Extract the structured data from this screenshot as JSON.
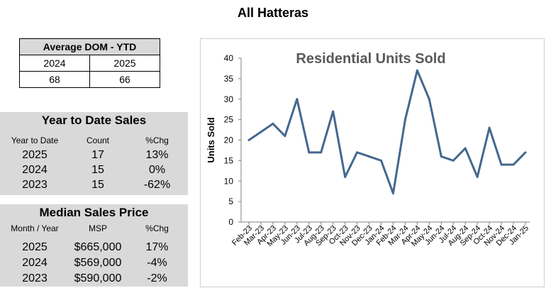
{
  "page": {
    "title": "All Hatteras"
  },
  "dom": {
    "title": "Average DOM - YTD",
    "years": [
      "2024",
      "2025"
    ],
    "values": [
      "68",
      "66"
    ]
  },
  "ytd": {
    "title": "Year to Date Sales",
    "headers": [
      "Year to Date",
      "Count",
      "%Chg"
    ],
    "rows": [
      {
        "year": "2025",
        "count": "17",
        "chg": "13%"
      },
      {
        "year": "2024",
        "count": "15",
        "chg": "0%"
      },
      {
        "year": "2023",
        "count": "15",
        "chg": "-62%"
      }
    ]
  },
  "msp": {
    "title": "Median Sales Price",
    "headers": [
      "Month / Year",
      "MSP",
      "%Chg"
    ],
    "rows": [
      {
        "year": "2025",
        "msp": "$665,000",
        "chg": "17%"
      },
      {
        "year": "2024",
        "msp": "$569,000",
        "chg": "-4%"
      },
      {
        "year": "2023",
        "msp": "$590,000",
        "chg": "-2%"
      }
    ]
  },
  "chart_data": {
    "type": "line",
    "title": "Residential Units Sold",
    "xlabel": "",
    "ylabel": "Units Sold",
    "ylim": [
      0,
      40
    ],
    "yticks": [
      0,
      5,
      10,
      15,
      20,
      25,
      30,
      35,
      40
    ],
    "categories": [
      "Feb-23",
      "Mar-23",
      "Apr-23",
      "May-23",
      "Jun-23",
      "Jul-23",
      "Aug-23",
      "Sep-23",
      "Oct-23",
      "Nov-23",
      "Dec-23",
      "Jan-24",
      "Feb-24",
      "Mar-24",
      "Apr-24",
      "May-24",
      "Jun-24",
      "Jul-24",
      "Aug-24",
      "Sep-24",
      "Oct-24",
      "Nov-24",
      "Dec-24",
      "Jan-25"
    ],
    "series": [
      {
        "name": "Units Sold",
        "values": [
          20,
          22,
          24,
          21,
          30,
          17,
          17,
          27,
          11,
          17,
          16,
          15,
          7,
          25,
          37,
          30,
          16,
          15,
          18,
          11,
          23,
          14,
          14,
          17
        ]
      }
    ],
    "line_color": "#44688f",
    "grid": false,
    "legend": "none"
  }
}
